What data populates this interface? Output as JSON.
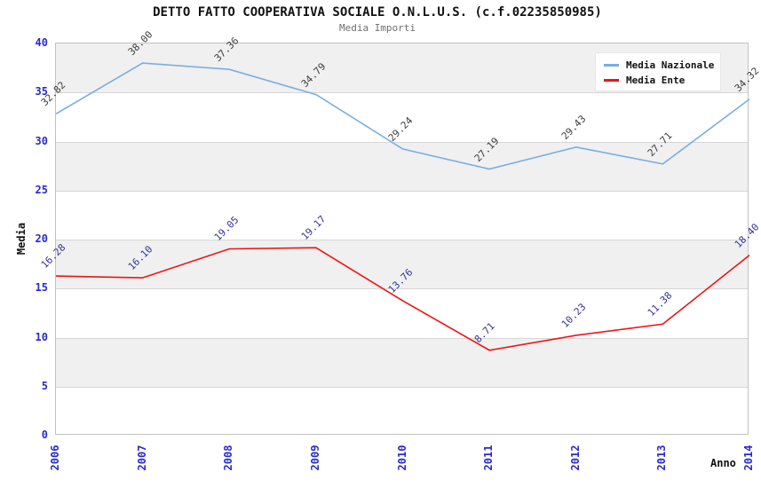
{
  "title": "DETTO FATTO COOPERATIVA SOCIALE O.N.L.U.S. (c.f.02235850985)",
  "subtitle": "Media Importi",
  "chart_data": {
    "type": "line",
    "x": [
      "2006",
      "2007",
      "2008",
      "2009",
      "2010",
      "2011",
      "2012",
      "2013",
      "2014"
    ],
    "series": [
      {
        "name": "Media Nazionale",
        "color": "#79aee3",
        "label_color": "#3d3d3d",
        "values": [
          32.82,
          38.0,
          37.36,
          34.79,
          29.24,
          27.19,
          29.43,
          27.71,
          34.32
        ],
        "labels": [
          "32.82",
          "38.00",
          "37.36",
          "34.79",
          "29.24",
          "27.19",
          "29.43",
          "27.71",
          "34.32"
        ]
      },
      {
        "name": "Media Ente",
        "color": "#ee1414",
        "label_color": "#333399",
        "values": [
          16.28,
          16.1,
          19.05,
          19.17,
          13.76,
          8.71,
          10.23,
          11.38,
          18.4
        ],
        "labels": [
          "16.28",
          "16.10",
          "19.05",
          "19.17",
          "13.76",
          "8.71",
          "10.23",
          "11.38",
          "18.40"
        ]
      }
    ],
    "xlabel": "Anno",
    "ylabel": "Media",
    "ylim": [
      0,
      40
    ],
    "y_ticks": [
      0,
      5,
      10,
      15,
      20,
      25,
      30,
      35,
      40
    ],
    "grid": "horizontal alternating bands",
    "legend_position": "top-right",
    "style": {
      "tick_label_color": "#2929cc",
      "band_color": "#f0f0f0",
      "gridline_color": "#d6d6d6",
      "plot_border_color": "#c2c2c2",
      "title_color": "#111111",
      "subtitle_color": "#6e6e6e"
    }
  }
}
